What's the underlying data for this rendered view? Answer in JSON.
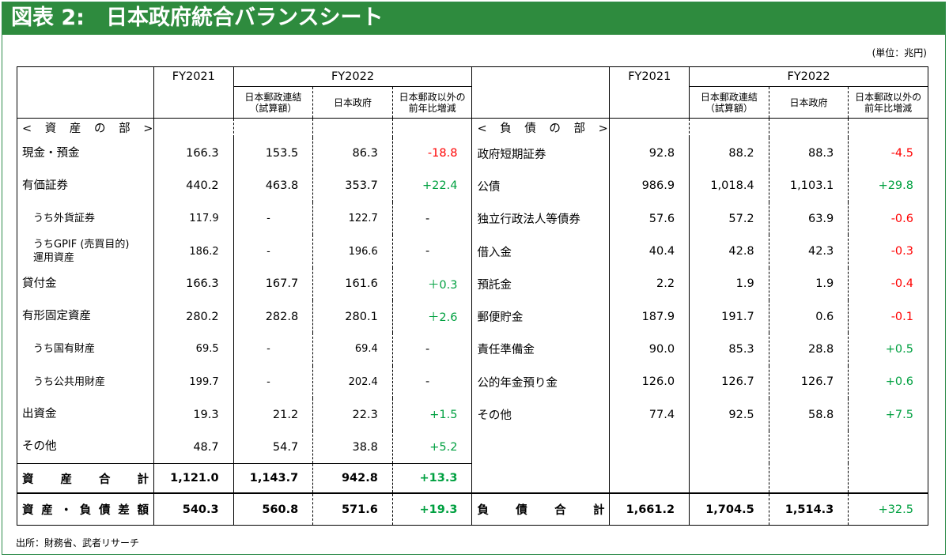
{
  "title": "図表 2:　日本政府統合バランスシート",
  "unit": "(単位：兆円)",
  "headers": {
    "fy2021": "FY2021",
    "fy2022": "FY2022",
    "post_consolidated": "日本郵政連結\n（試算額）",
    "government": "日本政府",
    "change": "日本郵政以外の\n前年比増減"
  },
  "assets": {
    "section_label": "< 資 産 の 部 >",
    "rows": [
      {
        "label": "現金・預金",
        "fy2021": "166.3",
        "post": "153.5",
        "gov": "86.3",
        "chg": "-18.8",
        "chg_color": "red"
      },
      {
        "label": "有価証券",
        "fy2021": "440.2",
        "post": "463.8",
        "gov": "353.7",
        "chg": "+22.4",
        "chg_color": "green"
      },
      {
        "label": "うち外貨証券",
        "fy2021": "117.9",
        "post": "-",
        "gov": "122.7",
        "chg": "-",
        "chg_color": "black"
      },
      {
        "label": "うちGPIF (売買目的)\n運用資産",
        "fy2021": "186.2",
        "post": "-",
        "gov": "196.6",
        "chg": "-",
        "chg_color": "black"
      },
      {
        "label": "貸付金",
        "fy2021": "166.3",
        "post": "167.7",
        "gov": "161.6",
        "chg": "＋0.3",
        "chg_color": "green"
      },
      {
        "label": "有形固定資産",
        "fy2021": "280.2",
        "post": "282.8",
        "gov": "280.1",
        "chg": "＋2.6",
        "chg_color": "green"
      },
      {
        "label": "うち国有財産",
        "fy2021": "69.5",
        "post": "-",
        "gov": "69.4",
        "chg": "-",
        "chg_color": "black"
      },
      {
        "label": "うち公共用財産",
        "fy2021": "199.7",
        "post": "-",
        "gov": "202.4",
        "chg": "-",
        "chg_color": "black"
      },
      {
        "label": "出資金",
        "fy2021": "19.3",
        "post": "21.2",
        "gov": "22.3",
        "chg": "+1.5",
        "chg_color": "green"
      },
      {
        "label": "その他",
        "fy2021": "48.7",
        "post": "54.7",
        "gov": "38.8",
        "chg": "+5.2",
        "chg_color": "green"
      }
    ],
    "total": {
      "label": "資 産 合 計",
      "fy2021": "1,121.0",
      "post": "1,143.7",
      "gov": "942.8",
      "chg": "+13.3"
    }
  },
  "liabilities": {
    "section_label": "< 負 債 の 部 >",
    "rows": [
      {
        "label": "政府短期証券",
        "fy2021": "92.8",
        "post": "88.2",
        "gov": "88.3",
        "chg": "-4.5",
        "chg_color": "red"
      },
      {
        "label": "公債",
        "fy2021": "986.9",
        "post": "1,018.4",
        "gov": "1,103.1",
        "chg": "+29.8",
        "chg_color": "green"
      },
      {
        "label": "独立行政法人等債券",
        "fy2021": "57.6",
        "post": "57.2",
        "gov": "63.9",
        "chg": "-0.6",
        "chg_color": "red"
      },
      {
        "label": "借入金",
        "fy2021": "40.4",
        "post": "42.8",
        "gov": "42.3",
        "chg": "-0.3",
        "chg_color": "red"
      },
      {
        "label": "預託金",
        "fy2021": "2.2",
        "post": "1.9",
        "gov": "1.9",
        "chg": "-0.4",
        "chg_color": "red"
      },
      {
        "label": "郵便貯金",
        "fy2021": "187.9",
        "post": "191.7",
        "gov": "0.6",
        "chg": "-0.1",
        "chg_color": "red"
      },
      {
        "label": "責任準備金",
        "fy2021": "90.0",
        "post": "85.3",
        "gov": "28.8",
        "chg": "+0.5",
        "chg_color": "green"
      },
      {
        "label": "公的年金預り金",
        "fy2021": "126.0",
        "post": "126.7",
        "gov": "126.7",
        "chg": "+0.6",
        "chg_color": "green"
      },
      {
        "label": "その他",
        "fy2021": "77.4",
        "post": "92.5",
        "gov": "58.8",
        "chg": "+7.5",
        "chg_color": "green"
      }
    ],
    "total": {
      "label": "負 債 合 計",
      "fy2021": "1,661.2",
      "post": "1,704.5",
      "gov": "1,514.3",
      "chg": "+32.5"
    }
  },
  "net": {
    "label": "資 産 ・ 負 債 差 額",
    "fy2021": "540.3",
    "post": "560.8",
    "gov": "571.6",
    "chg": "+19.3"
  },
  "source": "出所：財務省、武者リサーチ",
  "colors": {
    "title_bg": "#2e8b3e",
    "negative": "#ff0000",
    "positive": "#00a040"
  }
}
